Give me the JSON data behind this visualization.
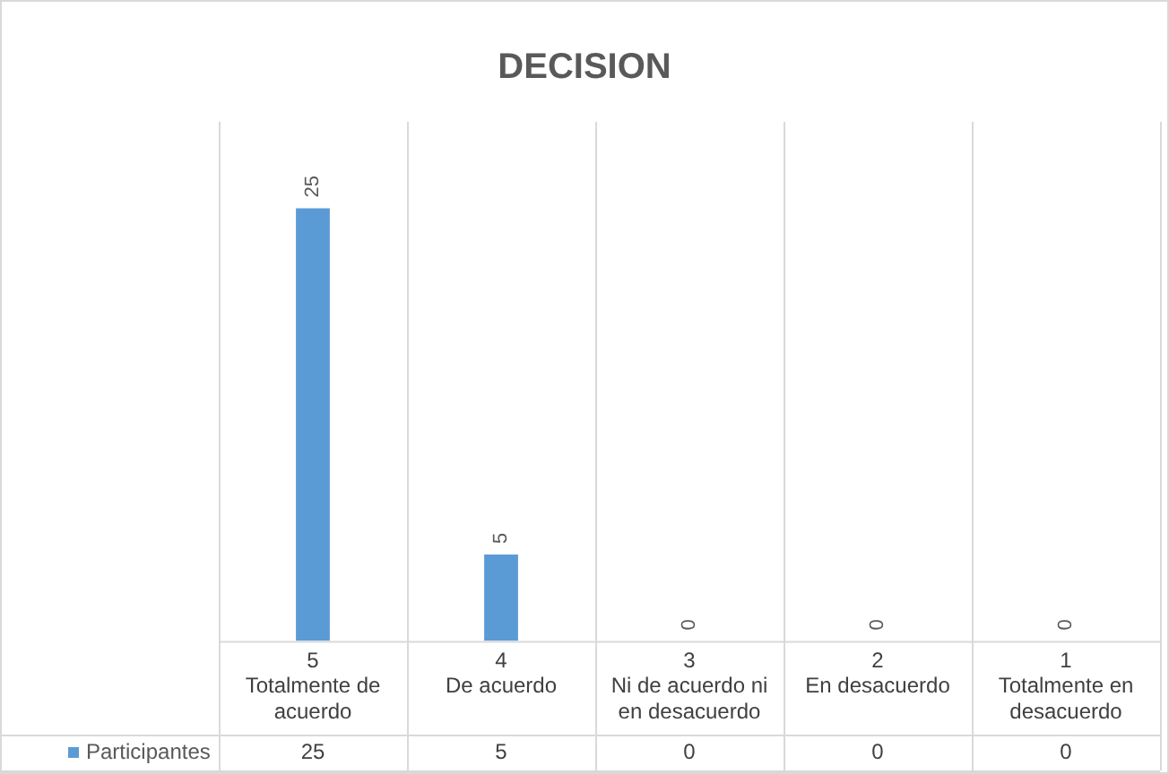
{
  "chart_data": {
    "type": "bar",
    "title": "DECISION",
    "categories": [
      "5\nTotalmente de acuerdo",
      "4\nDe acuerdo",
      "3\nNi de acuerdo ni en desacuerdo",
      "2\nEn desacuerdo",
      "1\nTotalmente en desacuerdo"
    ],
    "series": [
      {
        "name": "Participantes",
        "color": "#5b9bd5",
        "values": [
          25,
          5,
          0,
          0,
          0
        ]
      }
    ],
    "data_labels": true,
    "annotations": [
      "25",
      "5",
      "0",
      "0",
      "0"
    ],
    "grid": "x",
    "legend": "bottom",
    "tick_labels": "x"
  }
}
